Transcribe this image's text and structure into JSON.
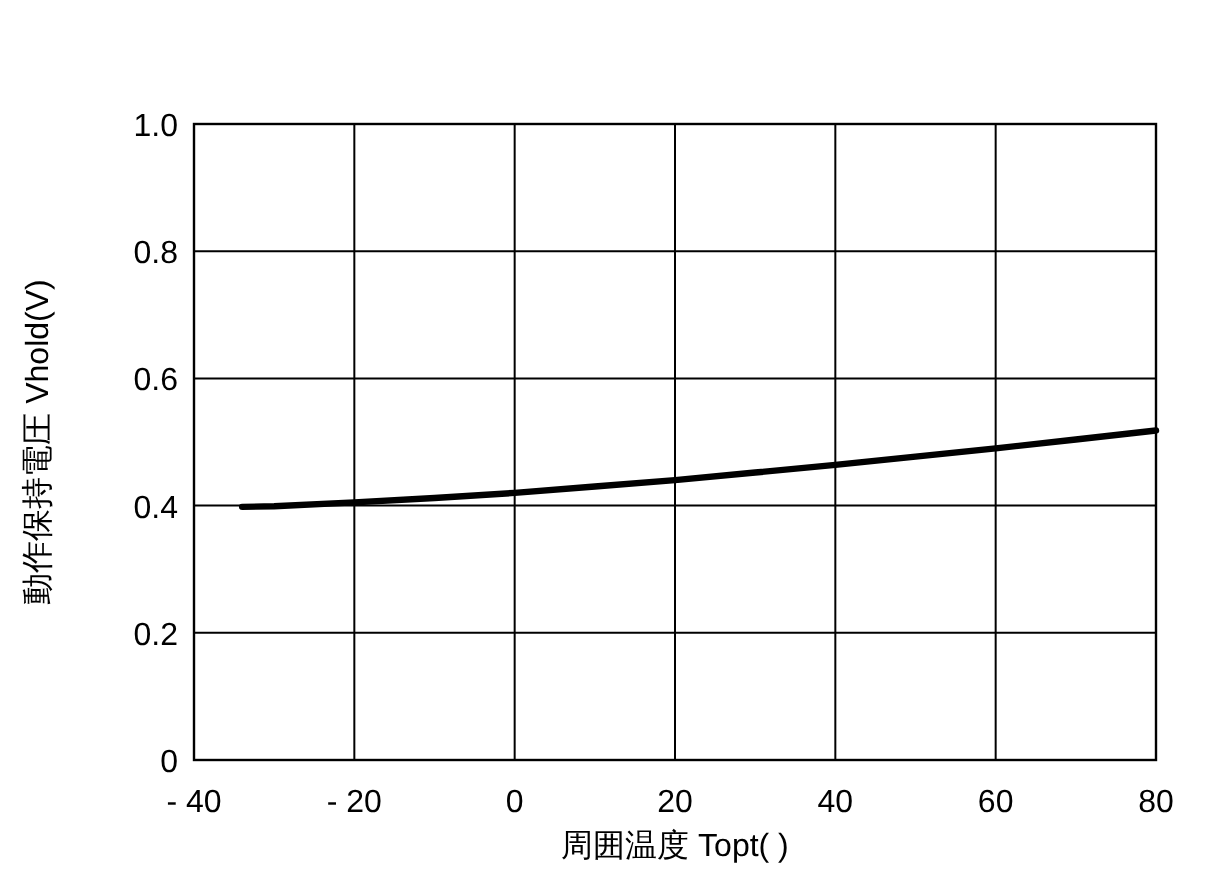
{
  "chart_data": {
    "type": "line",
    "xlabel": "周囲温度 Topt( )",
    "ylabel": "動作保持電圧 Vhold(V)",
    "x": [
      -34,
      -30,
      -20,
      -10,
      0,
      10,
      20,
      30,
      40,
      50,
      60,
      70,
      80
    ],
    "series": [
      {
        "color": "#000000",
        "values": [
          0.398,
          0.399,
          0.405,
          0.412,
          0.42,
          0.43,
          0.44,
          0.452,
          0.464,
          0.477,
          0.49,
          0.504,
          0.518
        ]
      }
    ],
    "xlim": [
      -40,
      80
    ],
    "ylim": [
      0,
      1.0
    ],
    "xticks": [
      {
        "value": -40,
        "label": "- 40"
      },
      {
        "value": -20,
        "label": "- 20"
      },
      0,
      20,
      40,
      60,
      80
    ],
    "yticks": [
      0,
      0.2,
      0.4,
      0.6,
      0.8,
      {
        "value": 1.0,
        "label": "1.0"
      }
    ],
    "grid": true,
    "marker": "none",
    "line_style": "solid"
  }
}
